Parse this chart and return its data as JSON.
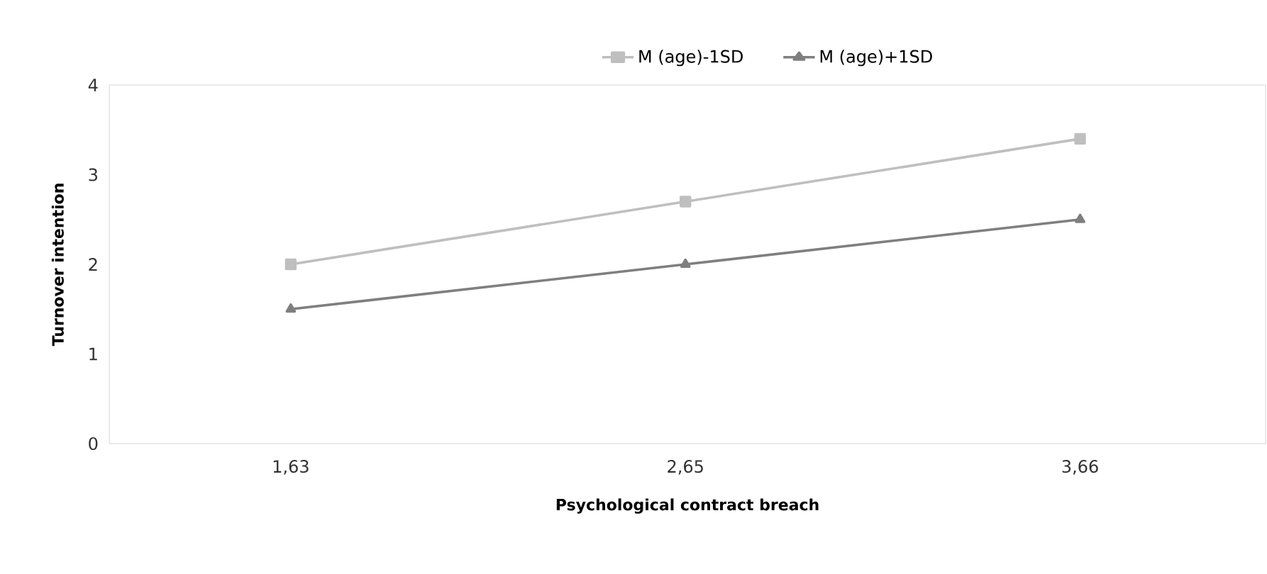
{
  "chart_data": {
    "type": "line",
    "xlabel": "Psychological contract breach",
    "ylabel": "Turnover intention",
    "categories": [
      "1,63",
      "2,65",
      "3,66"
    ],
    "series": [
      {
        "name": "M (age)-1SD",
        "color": "#bfbfbf",
        "marker": "square",
        "values": [
          2.0,
          2.7,
          3.4
        ]
      },
      {
        "name": "M (age)+1SD",
        "color": "#7f7f7f",
        "marker": "triangle",
        "values": [
          1.5,
          2.0,
          2.5
        ]
      }
    ],
    "ylim": [
      0,
      4
    ],
    "yticks": [
      0,
      1,
      2,
      3,
      4
    ],
    "legend": "top"
  }
}
